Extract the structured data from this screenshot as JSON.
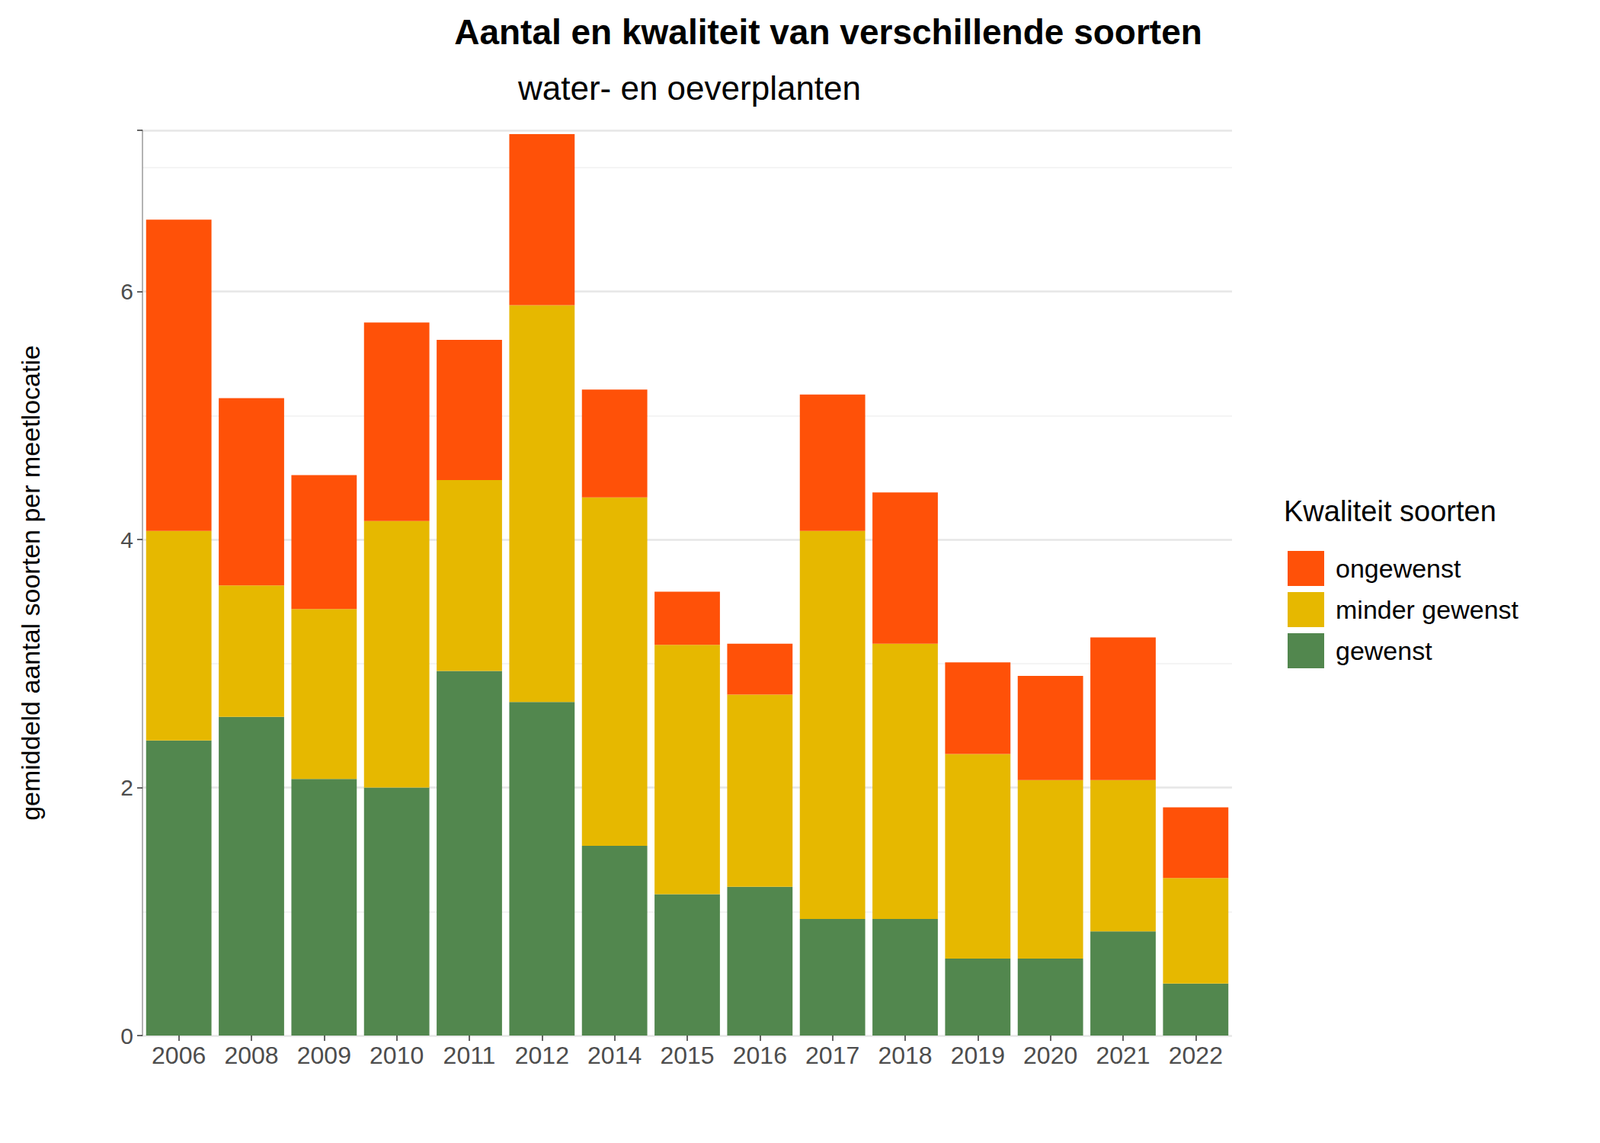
{
  "chart_data": {
    "type": "bar",
    "title": "Aantal en kwaliteit van verschillende soorten",
    "subtitle": "water- en oeverplanten",
    "y_label": "gemiddeld aantal soorten per meetlocatie",
    "legend_title": "Kwaliteit soorten",
    "categories": [
      "2006",
      "2008",
      "2009",
      "2010",
      "2011",
      "2012",
      "2014",
      "2015",
      "2016",
      "2017",
      "2018",
      "2019",
      "2020",
      "2021",
      "2022"
    ],
    "series": [
      {
        "name": "gewenst",
        "color": "#52874e",
        "values": [
          2.38,
          2.57,
          2.07,
          2.0,
          2.94,
          2.69,
          1.53,
          1.14,
          1.2,
          0.94,
          0.94,
          0.62,
          0.62,
          0.84,
          0.42
        ]
      },
      {
        "name": "minder gewenst",
        "color": "#e6b800",
        "values": [
          1.69,
          1.06,
          1.37,
          2.15,
          1.54,
          3.2,
          2.81,
          2.01,
          1.55,
          3.13,
          2.22,
          1.65,
          1.44,
          1.22,
          0.85
        ]
      },
      {
        "name": "ongewenst",
        "color": "#ff5108",
        "values": [
          2.51,
          1.51,
          1.08,
          1.6,
          1.13,
          1.38,
          0.87,
          0.43,
          0.41,
          1.1,
          1.22,
          0.74,
          0.84,
          1.15,
          0.57
        ]
      }
    ],
    "stacked": true,
    "ylim": [
      0,
      7.3
    ],
    "yticks": [
      0,
      2,
      4,
      6
    ],
    "grid": true,
    "legend": "right"
  }
}
